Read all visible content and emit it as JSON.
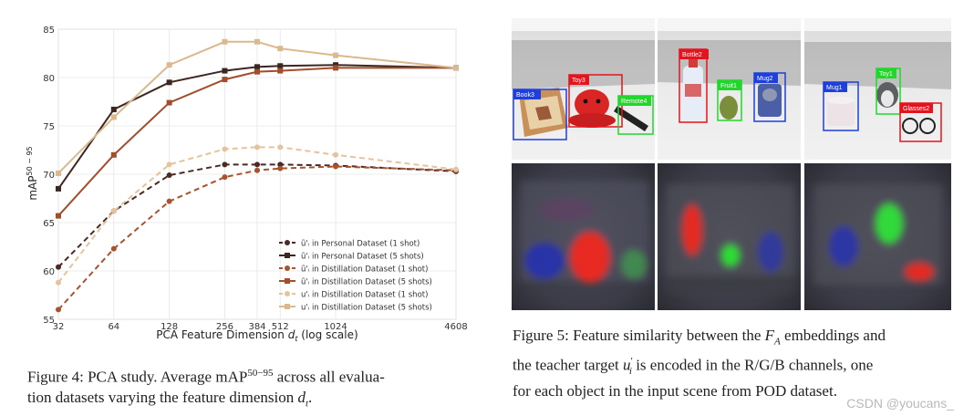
{
  "figure4": {
    "caption": {
      "prefix": "Figure 4: PCA study. Average mAP",
      "sup": "50−95",
      "rest": " across all evalua-",
      "line2": "tion datasets varying the feature dimension ",
      "var": "d",
      "var_sub": "t",
      "end": "."
    }
  },
  "chart_data": {
    "type": "line",
    "xscale": "log",
    "xlabel": "PCA Feature Dimension d_t (log scale)",
    "ylabel": "mAP^{50-95}",
    "x": [
      32,
      64,
      128,
      256,
      384,
      512,
      1024,
      4608
    ],
    "xticks": [
      "32",
      "64",
      "128",
      "256",
      "384",
      "512",
      "1024",
      "4608"
    ],
    "yticks": [
      55,
      60,
      65,
      70,
      75,
      80,
      85
    ],
    "ylim": [
      55,
      85
    ],
    "grid": true,
    "legend_position": "bottom-right",
    "series": [
      {
        "name": "ũ'ᵢ in Personal Dataset (1 shot)",
        "color": "#4a2a22",
        "marker": "circle",
        "dash": true,
        "values": [
          60.4,
          66.2,
          69.9,
          71.0,
          71.0,
          71.0,
          70.9,
          70.3
        ]
      },
      {
        "name": "ũ'ᵢ in Personal Dataset (5 shots)",
        "color": "#3d2620",
        "marker": "square",
        "dash": false,
        "values": [
          68.5,
          76.7,
          79.5,
          80.7,
          81.1,
          81.2,
          81.3,
          81.0
        ]
      },
      {
        "name": "ũ'ᵢ in Distillation Dataset (1 shot)",
        "color": "#a8532f",
        "marker": "circle",
        "dash": true,
        "values": [
          56.0,
          62.3,
          67.2,
          69.7,
          70.4,
          70.6,
          70.8,
          70.4
        ]
      },
      {
        "name": "ũ'ᵢ in Distillation Dataset (5 shots)",
        "color": "#a24d2b",
        "marker": "square",
        "dash": false,
        "values": [
          65.7,
          72.0,
          77.4,
          79.8,
          80.6,
          80.7,
          81.0,
          81.0
        ]
      },
      {
        "name": "u'ᵢ in Distillation Dataset (1 shot)",
        "color": "#e4c39d",
        "marker": "circle",
        "dash": true,
        "values": [
          58.8,
          66.2,
          71.0,
          72.6,
          72.8,
          72.8,
          72.0,
          70.5
        ]
      },
      {
        "name": "u'ᵢ in Distillation Dataset (5 shots)",
        "color": "#dbb98f",
        "marker": "square",
        "dash": false,
        "values": [
          70.1,
          75.9,
          81.3,
          83.7,
          83.7,
          83.0,
          82.3,
          81.0
        ]
      }
    ]
  },
  "figure5": {
    "labels": {
      "scene1": [
        "Book3",
        "Toy3",
        "Remote4"
      ],
      "scene2": [
        "Bottle2",
        "Fruit1",
        "Mug2"
      ],
      "scene3": [
        "Mug1",
        "Toy1",
        "Glasses2"
      ]
    },
    "caption": {
      "p1": "Figure 5: Feature similarity between the ",
      "fa": "F",
      "fa_sub": "A",
      "p2": " embeddings and",
      "p3": "the teacher target ",
      "u": "u",
      "u_sup": "′",
      "u_sub": "i",
      "p4": " is encoded in the R/G/B channels, one",
      "p5": "for each object in the input scene from POD dataset."
    },
    "colors": {
      "blue": "#1f3fdc",
      "red": "#e3141d",
      "green": "#22d62c"
    }
  },
  "watermark": "CSDN @youcans_"
}
